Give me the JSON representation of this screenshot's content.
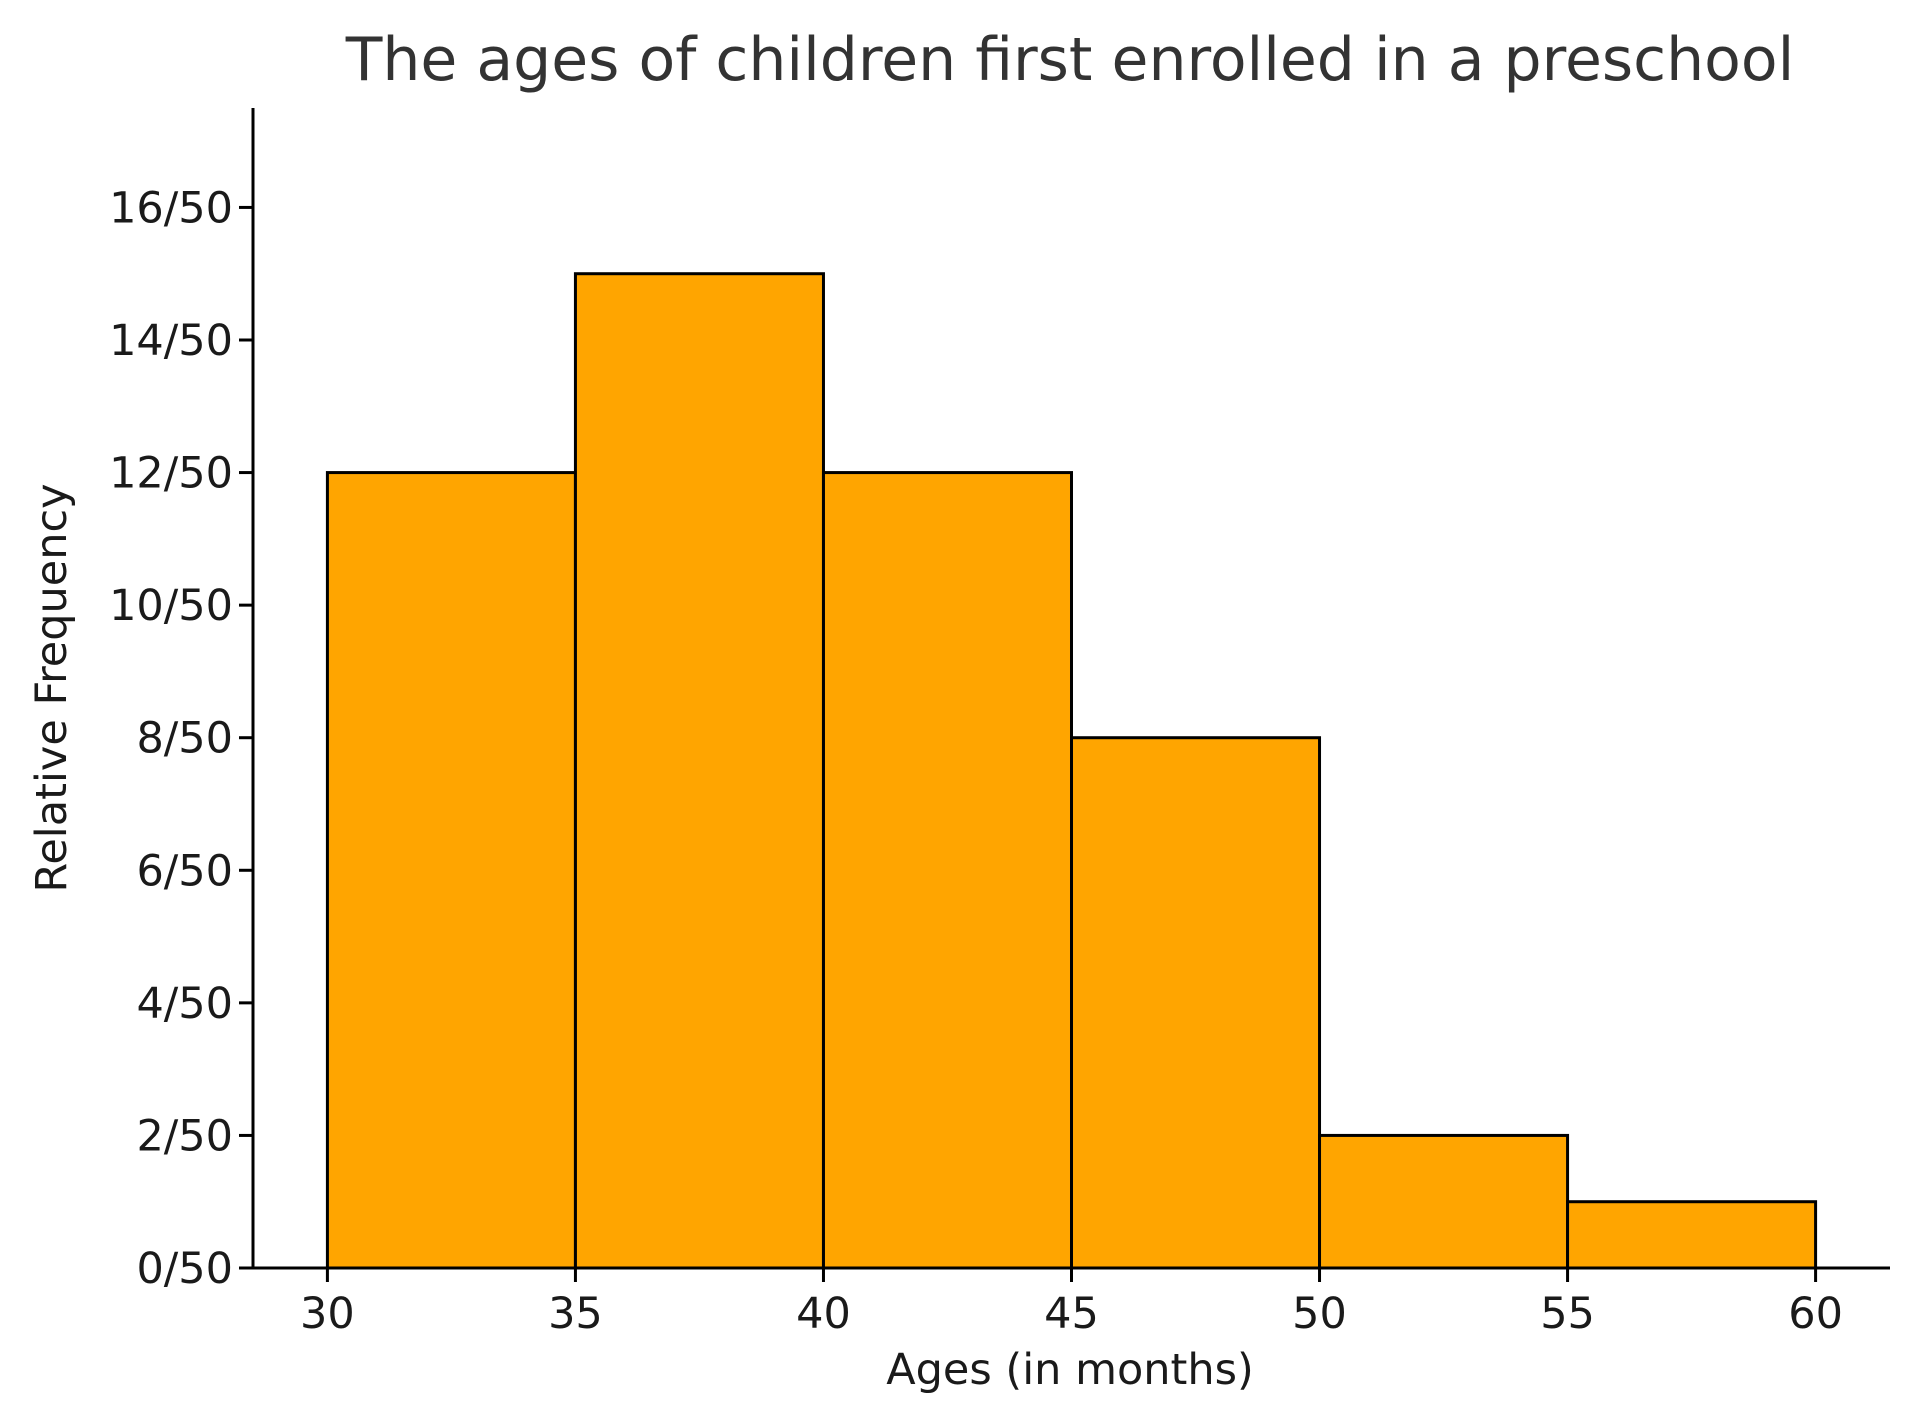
{
  "chart_data": {
    "type": "bar",
    "title": "The ages of children first enrolled in a preschool",
    "xlabel": "Ages (in months)",
    "ylabel": "Relative Frequency",
    "bins": [
      {
        "start": 30,
        "end": 35,
        "value": 12
      },
      {
        "start": 35,
        "end": 40,
        "value": 15
      },
      {
        "start": 40,
        "end": 45,
        "value": 12
      },
      {
        "start": 45,
        "end": 50,
        "value": 8
      },
      {
        "start": 50,
        "end": 55,
        "value": 2
      },
      {
        "start": 55,
        "end": 60,
        "value": 1
      }
    ],
    "x_ticks": [
      30,
      35,
      40,
      45,
      50,
      55,
      60
    ],
    "x_tick_labels": [
      "30",
      "35",
      "40",
      "45",
      "50",
      "55",
      "60"
    ],
    "y_ticks": [
      0,
      2,
      4,
      6,
      8,
      10,
      12,
      14,
      16
    ],
    "y_tick_labels": [
      "0/50",
      "2/50",
      "4/50",
      "6/50",
      "8/50",
      "10/50",
      "12/50",
      "14/50",
      "16/50"
    ],
    "xlim": [
      28.5,
      61.5
    ],
    "ylim": [
      0,
      17.5
    ],
    "grid": false,
    "legend": "none",
    "colors": {
      "bar_fill": "#FFA500",
      "bar_edge": "#000000",
      "axis": "#000000",
      "title": "#333333",
      "text": "#1a1a1a"
    }
  }
}
